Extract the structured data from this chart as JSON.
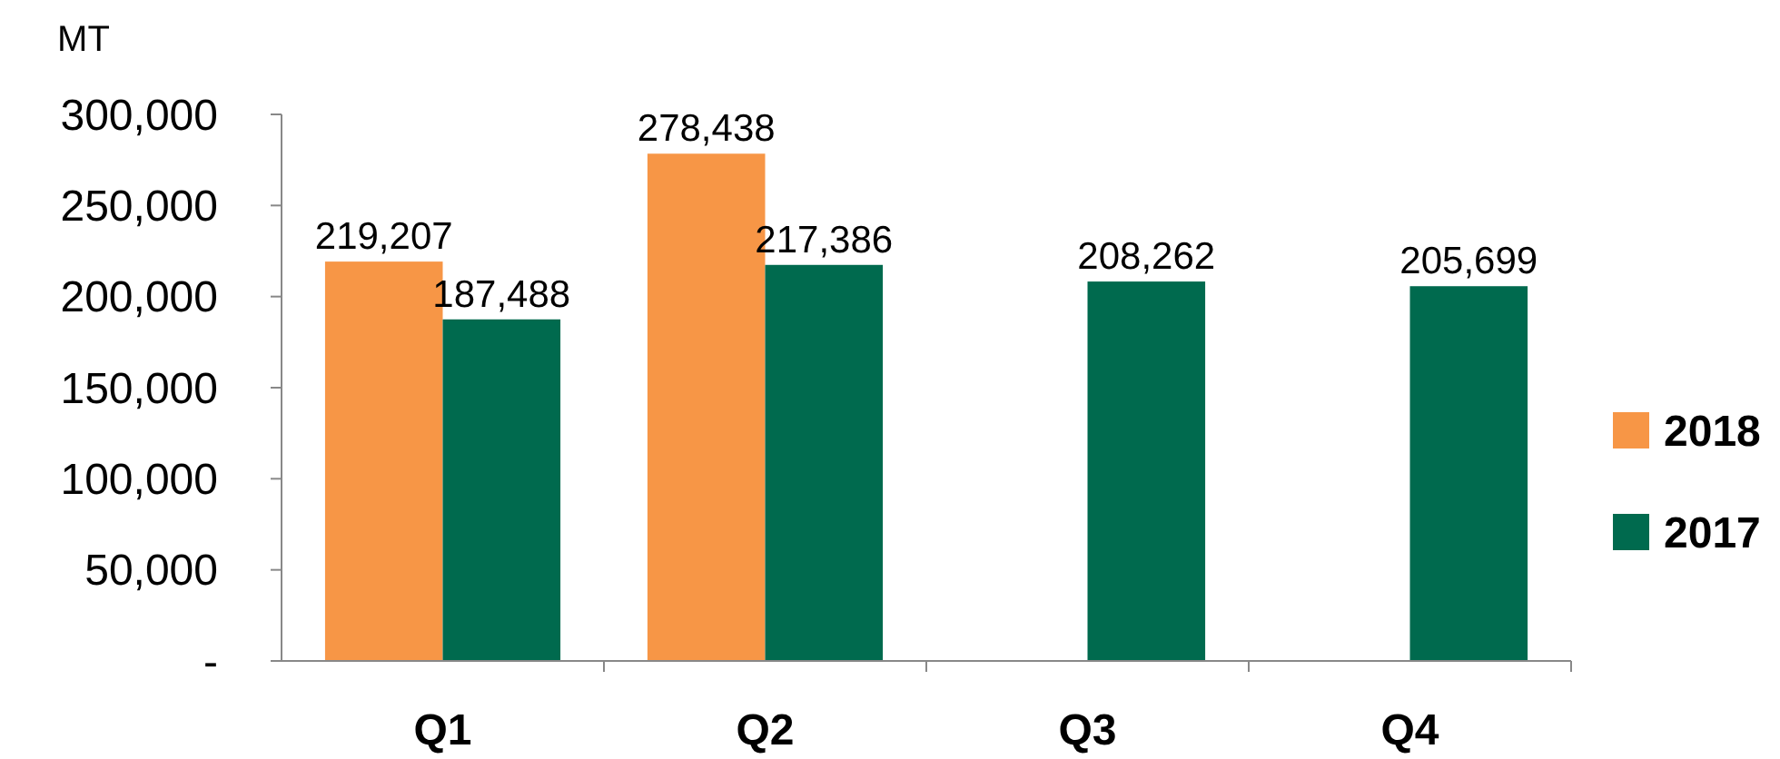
{
  "chart_data": {
    "type": "bar",
    "ylabel": "MT",
    "categories": [
      "Q1",
      "Q2",
      "Q3",
      "Q4"
    ],
    "series": [
      {
        "name": "2018",
        "color": "#f79646",
        "values": [
          219207,
          278438,
          null,
          null
        ],
        "value_labels": [
          "219,207",
          "278,438",
          null,
          null
        ]
      },
      {
        "name": "2017",
        "color": "#006a4e",
        "values": [
          187488,
          217386,
          208262,
          205699
        ],
        "value_labels": [
          "187,488",
          "217,386",
          "208,262",
          "205,699"
        ]
      }
    ],
    "ylim": [
      0,
      300000
    ],
    "yticks": [
      {
        "value": 0,
        "label": "-"
      },
      {
        "value": 50000,
        "label": "50,000"
      },
      {
        "value": 100000,
        "label": "100,000"
      },
      {
        "value": 150000,
        "label": "150,000"
      },
      {
        "value": 200000,
        "label": "200,000"
      },
      {
        "value": 250000,
        "label": "250,000"
      },
      {
        "value": 300000,
        "label": "300,000"
      }
    ],
    "legend": "right",
    "grid": false
  }
}
